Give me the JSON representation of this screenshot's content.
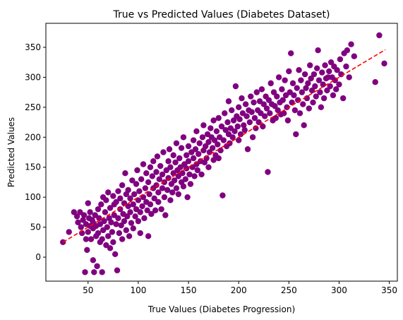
{
  "chart_data": {
    "type": "scatter",
    "title": "True vs Predicted Values (Diabetes Dataset)",
    "xlabel": "True Values (Diabetes Progression)",
    "ylabel": "Predicted Values",
    "xlim": [
      8,
      358
    ],
    "ylim": [
      -40,
      390
    ],
    "x_ticks": [
      50,
      100,
      150,
      200,
      250,
      300,
      350
    ],
    "y_ticks": [
      0,
      50,
      100,
      150,
      200,
      250,
      300,
      350
    ],
    "grid": false,
    "legend": "none",
    "marker_color": "#800080",
    "reference_line": {
      "style": "dashed",
      "color": "#ff0000",
      "from": [
        25,
        25
      ],
      "to": [
        346,
        346
      ]
    },
    "series": [
      {
        "points": [
          [
            25,
            25
          ],
          [
            31,
            42
          ],
          [
            36,
            75
          ],
          [
            39,
            68
          ],
          [
            40,
            58
          ],
          [
            42,
            75
          ],
          [
            43,
            50
          ],
          [
            44,
            40
          ],
          [
            45,
            62
          ],
          [
            46,
            70
          ],
          [
            47,
            -25
          ],
          [
            48,
            30
          ],
          [
            48,
            55
          ],
          [
            49,
            12
          ],
          [
            50,
            90
          ],
          [
            50,
            42
          ],
          [
            51,
            65
          ],
          [
            52,
            52
          ],
          [
            52,
            75
          ],
          [
            53,
            30
          ],
          [
            54,
            62
          ],
          [
            55,
            -5
          ],
          [
            55,
            48
          ],
          [
            55,
            58
          ],
          [
            56,
            -25
          ],
          [
            57,
            70
          ],
          [
            58,
            35
          ],
          [
            58,
            52
          ],
          [
            59,
            -15
          ],
          [
            60,
            80
          ],
          [
            60,
            40
          ],
          [
            61,
            65
          ],
          [
            62,
            25
          ],
          [
            62,
            55
          ],
          [
            63,
            88
          ],
          [
            64,
            -25
          ],
          [
            64,
            30
          ],
          [
            65,
            45
          ],
          [
            65,
            100
          ],
          [
            66,
            60
          ],
          [
            67,
            75
          ],
          [
            68,
            20
          ],
          [
            68,
            95
          ],
          [
            69,
            50
          ],
          [
            70,
            108
          ],
          [
            70,
            35
          ],
          [
            71,
            65
          ],
          [
            72,
            82
          ],
          [
            72,
            15
          ],
          [
            73,
            58
          ],
          [
            74,
            42
          ],
          [
            75,
            102
          ],
          [
            75,
            25
          ],
          [
            76,
            70
          ],
          [
            76,
            88
          ],
          [
            77,
            5
          ],
          [
            78,
            92
          ],
          [
            78,
            55
          ],
          [
            79,
            -22
          ],
          [
            80,
            110
          ],
          [
            80,
            65
          ],
          [
            81,
            40
          ],
          [
            82,
            80
          ],
          [
            82,
            98
          ],
          [
            83,
            53
          ],
          [
            84,
            120
          ],
          [
            84,
            30
          ],
          [
            85,
            72
          ],
          [
            86,
            90
          ],
          [
            86,
            60
          ],
          [
            87,
            140
          ],
          [
            88,
            45
          ],
          [
            88,
            105
          ],
          [
            89,
            68
          ],
          [
            90,
            85
          ],
          [
            90,
            112
          ],
          [
            91,
            35
          ],
          [
            92,
            75
          ],
          [
            92,
            98
          ],
          [
            93,
            57
          ],
          [
            94,
            128
          ],
          [
            95,
            88
          ],
          [
            95,
            48
          ],
          [
            96,
            105
          ],
          [
            97,
            68
          ],
          [
            98,
            122
          ],
          [
            98,
            80
          ],
          [
            99,
            145
          ],
          [
            100,
            60
          ],
          [
            100,
            95
          ],
          [
            101,
            110
          ],
          [
            102,
            40
          ],
          [
            102,
            75
          ],
          [
            103,
            130
          ],
          [
            104,
            85
          ],
          [
            105,
            100
          ],
          [
            105,
            155
          ],
          [
            106,
            65
          ],
          [
            107,
            115
          ],
          [
            108,
            92
          ],
          [
            108,
            140
          ],
          [
            109,
            78
          ],
          [
            110,
            125
          ],
          [
            110,
            35
          ],
          [
            111,
            105
          ],
          [
            112,
            150
          ],
          [
            112,
            88
          ],
          [
            113,
            72
          ],
          [
            114,
            135
          ],
          [
            115,
            115
          ],
          [
            115,
            160
          ],
          [
            116,
            98
          ],
          [
            117,
            78
          ],
          [
            118,
            142
          ],
          [
            118,
            120
          ],
          [
            119,
            168
          ],
          [
            120,
            108
          ],
          [
            120,
            92
          ],
          [
            121,
            130
          ],
          [
            122,
            152
          ],
          [
            123,
            80
          ],
          [
            124,
            115
          ],
          [
            124,
            138
          ],
          [
            125,
            175
          ],
          [
            126,
            100
          ],
          [
            126,
            125
          ],
          [
            127,
            70
          ],
          [
            128,
            145
          ],
          [
            129,
            112
          ],
          [
            130,
            160
          ],
          [
            130,
            132
          ],
          [
            131,
            180
          ],
          [
            132,
            95
          ],
          [
            132,
            150
          ],
          [
            133,
            122
          ],
          [
            134,
            108
          ],
          [
            135,
            140
          ],
          [
            135,
            170
          ],
          [
            136,
            128
          ],
          [
            137,
            158
          ],
          [
            138,
            115
          ],
          [
            138,
            190
          ],
          [
            139,
            145
          ],
          [
            140,
            135
          ],
          [
            140,
            105
          ],
          [
            141,
            165
          ],
          [
            142,
            150
          ],
          [
            143,
            125
          ],
          [
            143,
            182
          ],
          [
            144,
            140
          ],
          [
            145,
            118
          ],
          [
            145,
            200
          ],
          [
            146,
            155
          ],
          [
            147,
            130
          ],
          [
            148,
            170
          ],
          [
            148,
            148
          ],
          [
            149,
            100
          ],
          [
            150,
            185
          ],
          [
            150,
            160
          ],
          [
            151,
            138
          ],
          [
            152,
            122
          ],
          [
            153,
            175
          ],
          [
            154,
            150
          ],
          [
            155,
            195
          ],
          [
            155,
            165
          ],
          [
            156,
            135
          ],
          [
            157,
            180
          ],
          [
            158,
            155
          ],
          [
            158,
            210
          ],
          [
            159,
            145
          ],
          [
            160,
            172
          ],
          [
            161,
            190
          ],
          [
            162,
            160
          ],
          [
            163,
            138
          ],
          [
            164,
            200
          ],
          [
            165,
            178
          ],
          [
            165,
            220
          ],
          [
            166,
            158
          ],
          [
            167,
            185
          ],
          [
            168,
            165
          ],
          [
            169,
            205
          ],
          [
            170,
            192
          ],
          [
            170,
            150
          ],
          [
            171,
            175
          ],
          [
            172,
            215
          ],
          [
            173,
            200
          ],
          [
            174,
            182
          ],
          [
            175,
            162
          ],
          [
            175,
            228
          ],
          [
            176,
            195
          ],
          [
            177,
            170
          ],
          [
            178,
            210
          ],
          [
            179,
            188
          ],
          [
            180,
            232
          ],
          [
            180,
            165
          ],
          [
            181,
            200
          ],
          [
            182,
            178
          ],
          [
            183,
            218
          ],
          [
            184,
            103
          ],
          [
            185,
            195
          ],
          [
            186,
            240
          ],
          [
            187,
            212
          ],
          [
            188,
            185
          ],
          [
            189,
            225
          ],
          [
            190,
            205
          ],
          [
            190,
            260
          ],
          [
            191,
            190
          ],
          [
            192,
            215
          ],
          [
            193,
            245
          ],
          [
            194,
            200
          ],
          [
            195,
            228
          ],
          [
            196,
            210
          ],
          [
            197,
            285
          ],
          [
            198,
            235
          ],
          [
            199,
            218
          ],
          [
            200,
            195
          ],
          [
            200,
            250
          ],
          [
            201,
            230
          ],
          [
            202,
            205
          ],
          [
            203,
            265
          ],
          [
            204,
            240
          ],
          [
            205,
            220
          ],
          [
            206,
            212
          ],
          [
            207,
            255
          ],
          [
            208,
            235
          ],
          [
            209,
            180
          ],
          [
            210,
            245
          ],
          [
            211,
            225
          ],
          [
            212,
            268
          ],
          [
            213,
            242
          ],
          [
            214,
            200
          ],
          [
            215,
            258
          ],
          [
            216,
            232
          ],
          [
            217,
            215
          ],
          [
            218,
            275
          ],
          [
            219,
            245
          ],
          [
            220,
            225
          ],
          [
            221,
            260
          ],
          [
            222,
            240
          ],
          [
            223,
            280
          ],
          [
            224,
            218
          ],
          [
            225,
            255
          ],
          [
            226,
            235
          ],
          [
            227,
            268
          ],
          [
            228,
            248
          ],
          [
            229,
            142
          ],
          [
            230,
            262
          ],
          [
            231,
            240
          ],
          [
            232,
            290
          ],
          [
            233,
            255
          ],
          [
            234,
            228
          ],
          [
            235,
            275
          ],
          [
            236,
            252
          ],
          [
            237,
            232
          ],
          [
            238,
            268
          ],
          [
            239,
            245
          ],
          [
            240,
            300
          ],
          [
            241,
            258
          ],
          [
            242,
            238
          ],
          [
            243,
            280
          ],
          [
            244,
            262
          ],
          [
            245,
            240
          ],
          [
            246,
            295
          ],
          [
            247,
            270
          ],
          [
            248,
            250
          ],
          [
            249,
            228
          ],
          [
            250,
            310
          ],
          [
            251,
            275
          ],
          [
            252,
            340
          ],
          [
            253,
            258
          ],
          [
            254,
            290
          ],
          [
            255,
            270
          ],
          [
            256,
            245
          ],
          [
            257,
            205
          ],
          [
            258,
            282
          ],
          [
            259,
            262
          ],
          [
            260,
            312
          ],
          [
            261,
            240
          ],
          [
            262,
            295
          ],
          [
            263,
            275
          ],
          [
            264,
            255
          ],
          [
            265,
            220
          ],
          [
            266,
            305
          ],
          [
            267,
            282
          ],
          [
            268,
            265
          ],
          [
            269,
            290
          ],
          [
            270,
            248
          ],
          [
            271,
            320
          ],
          [
            272,
            298
          ],
          [
            273,
            278
          ],
          [
            274,
            258
          ],
          [
            275,
            305
          ],
          [
            276,
            285
          ],
          [
            277,
            268
          ],
          [
            278,
            315
          ],
          [
            279,
            345
          ],
          [
            280,
            295
          ],
          [
            281,
            275
          ],
          [
            282,
            250
          ],
          [
            283,
            308
          ],
          [
            284,
            288
          ],
          [
            285,
            265
          ],
          [
            286,
            320
          ],
          [
            287,
            298
          ],
          [
            288,
            278
          ],
          [
            289,
            300
          ],
          [
            290,
            310
          ],
          [
            291,
            285
          ],
          [
            292,
            325
          ],
          [
            293,
            300
          ],
          [
            294,
            270
          ],
          [
            295,
            318
          ],
          [
            296,
            295
          ],
          [
            297,
            280
          ],
          [
            298,
            312
          ],
          [
            300,
            288
          ],
          [
            301,
            330
          ],
          [
            302,
            305
          ],
          [
            304,
            265
          ],
          [
            305,
            340
          ],
          [
            307,
            318
          ],
          [
            308,
            345
          ],
          [
            310,
            300
          ],
          [
            312,
            355
          ],
          [
            315,
            335
          ],
          [
            336,
            292
          ],
          [
            340,
            370
          ],
          [
            345,
            323
          ]
        ]
      }
    ]
  }
}
